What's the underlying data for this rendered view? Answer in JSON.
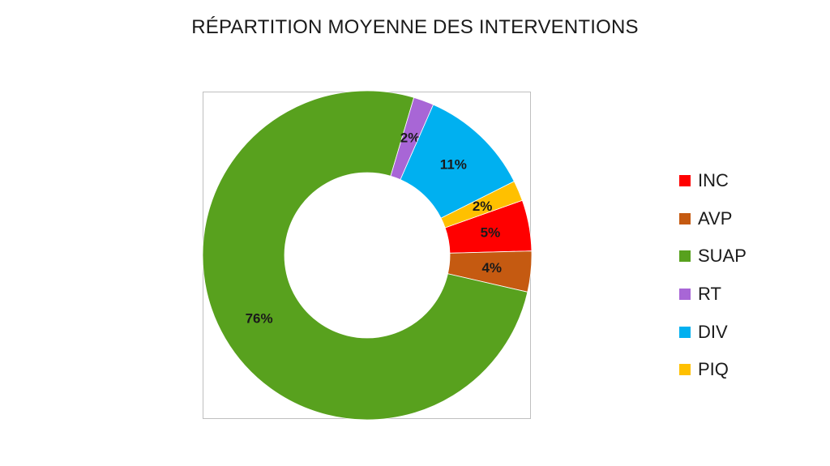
{
  "chart_data": {
    "type": "pie",
    "variant": "donut",
    "title": "RÉPARTITION MOYENNE DES INTERVENTIONS",
    "slices": [
      {
        "name": "INC",
        "value": 5,
        "label": "5%",
        "color": "#ff0000"
      },
      {
        "name": "AVP",
        "value": 4,
        "label": "4%",
        "color": "#c55a11"
      },
      {
        "name": "SUAP",
        "value": 76,
        "label": "76%",
        "color": "#58a11e"
      },
      {
        "name": "RT",
        "value": 2,
        "label": "2%",
        "color": "#a866d6"
      },
      {
        "name": "DIV",
        "value": 11,
        "label": "11%",
        "color": "#00b0f0"
      },
      {
        "name": "PIQ",
        "value": 2,
        "label": "2%",
        "color": "#ffc000"
      }
    ],
    "legend_position": "right"
  }
}
